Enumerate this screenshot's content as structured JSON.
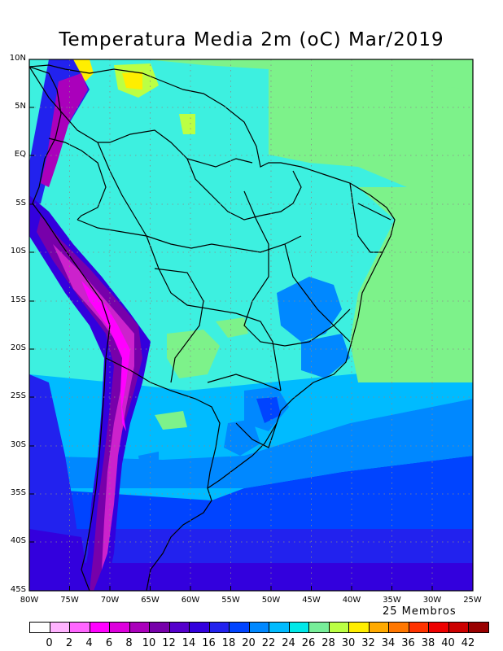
{
  "title": "Temperatura Media 2m (oC) Mar/2019",
  "members_label": "25 Membros",
  "lat_labels": [
    "10N",
    "5N",
    "EQ",
    "5S",
    "10S",
    "15S",
    "20S",
    "25S",
    "30S",
    "35S",
    "40S",
    "45S"
  ],
  "lon_labels": [
    "80W",
    "75W",
    "70W",
    "65W",
    "60W",
    "55W",
    "50W",
    "45W",
    "40W",
    "35W",
    "30W",
    "25W"
  ],
  "legend": {
    "labels": [
      "0",
      "2",
      "4",
      "6",
      "8",
      "10",
      "12",
      "14",
      "16",
      "18",
      "20",
      "22",
      "24",
      "26",
      "28",
      "30",
      "32",
      "34",
      "36",
      "38",
      "40",
      "42"
    ],
    "colors": [
      "#ffffff",
      "#ffb3ff",
      "#ff66ff",
      "#ff00ff",
      "#dd00dd",
      "#aa00bb",
      "#7700aa",
      "#5500cc",
      "#3300dd",
      "#2222ee",
      "#0044ff",
      "#0088ff",
      "#00bbff",
      "#00e8e8",
      "#77ee99",
      "#bbff44",
      "#ffee00",
      "#ffaa00",
      "#ff7700",
      "#ff3300",
      "#ee0000",
      "#cc0000",
      "#990000"
    ]
  },
  "colors": {
    "ocean_north": "#7df28a",
    "land_main": "#3df0e0",
    "andes": "#cc22cc",
    "south_cold": "#1a1add"
  }
}
